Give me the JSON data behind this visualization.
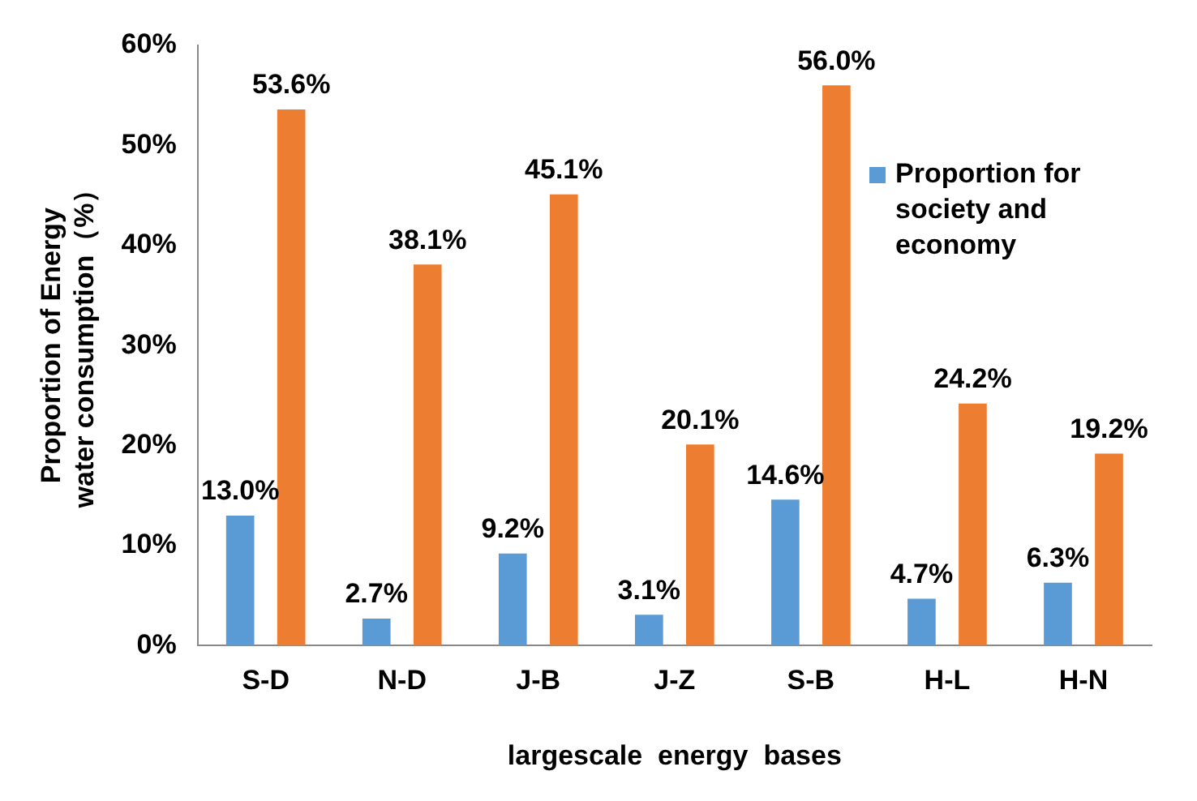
{
  "chart_data": {
    "type": "bar",
    "xlabel": "largescale  energy  bases",
    "ylabel": "Proportion of Energy  water consumption（%）",
    "categories": [
      "S-D",
      "N-D",
      "J-B",
      "J-Z",
      "S-B",
      "H-L",
      "H-N"
    ],
    "series": [
      {
        "name": "Proportion for society and economy",
        "color": "#5b9bd5",
        "values": [
          13.0,
          2.7,
          9.2,
          3.1,
          14.6,
          4.7,
          6.3
        ],
        "value_labels": [
          "13.0%",
          "2.7%",
          "9.2%",
          "3.1%",
          "14.6%",
          "4.7%",
          "6.3%"
        ]
      },
      {
        "color": "#ed7d31",
        "values": [
          53.6,
          38.1,
          45.1,
          20.1,
          56.0,
          24.2,
          19.2
        ],
        "value_labels": [
          "53.6%",
          "38.1%",
          "45.1%",
          "20.1%",
          "56.0%",
          "24.2%",
          "19.2%"
        ]
      }
    ],
    "ylim": [
      0,
      60
    ],
    "yticks": [
      {
        "value": 0,
        "label": "0%"
      },
      {
        "value": 10,
        "label": "10%"
      },
      {
        "value": 20,
        "label": "20%"
      },
      {
        "value": 30,
        "label": "30%"
      },
      {
        "value": 40,
        "label": "40%"
      },
      {
        "value": 50,
        "label": "50%"
      },
      {
        "value": 60,
        "label": "60%"
      }
    ],
    "grid": false,
    "legend": "top right"
  }
}
